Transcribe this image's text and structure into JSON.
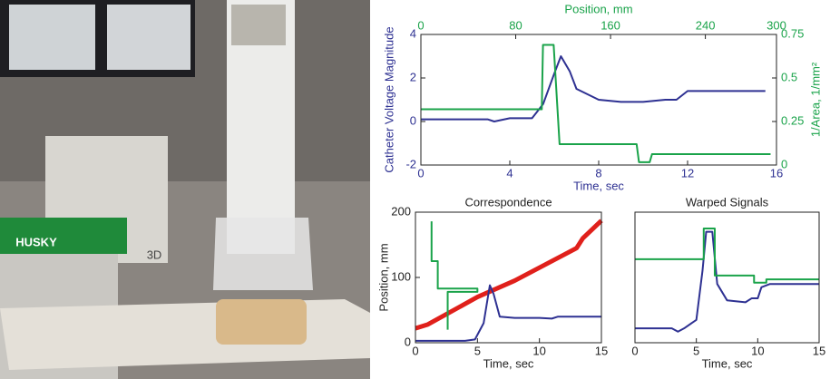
{
  "photo": {
    "texts": [
      "HUSKY",
      "3D"
    ]
  },
  "chart_data": [
    {
      "type": "line",
      "xlabel": "Time, sec",
      "ylabel": "Catheter Voltage Magnitude",
      "x2label": "Position, mm",
      "y2label": "1/Area, 1/mm²",
      "xlim": [
        0,
        16
      ],
      "xticks": [
        0,
        4,
        8,
        12,
        16
      ],
      "ylim": [
        -2,
        4
      ],
      "yticks": [
        -2,
        0,
        2,
        4
      ],
      "x2lim": [
        0,
        300
      ],
      "x2ticks": [
        0,
        80,
        160,
        240,
        300
      ],
      "y2lim": [
        0,
        0.75
      ],
      "y2ticks": [
        0,
        0.25,
        0.5,
        0.75
      ],
      "label_colors": {
        "x": "#2e3192",
        "y": "#2e3192",
        "x2": "#1aa34a",
        "y2": "#1aa34a"
      },
      "series": [
        {
          "color": "#2e3192",
          "x": [
            0,
            3,
            3.3,
            4,
            5,
            5.5,
            6,
            6.3,
            6.7,
            7,
            8,
            9,
            10,
            11,
            11.5,
            12,
            15.5
          ],
          "values": [
            0.1,
            0.1,
            0.0,
            0.15,
            0.15,
            0.8,
            2.2,
            3.0,
            2.3,
            1.5,
            1.0,
            0.9,
            0.9,
            1.0,
            1.0,
            1.4,
            1.4
          ]
        },
        {
          "color": "#1aa34a",
          "axis": "y2",
          "xaxis": "x2",
          "x": [
            0,
            102,
            103,
            112,
            117,
            182,
            184,
            193,
            195,
            295
          ],
          "values": [
            0.32,
            0.32,
            0.69,
            0.69,
            0.12,
            0.12,
            0.016,
            0.016,
            0.0625,
            0.0625
          ]
        }
      ]
    },
    {
      "type": "line",
      "title": "Correspondence",
      "xlabel": "Time, sec",
      "ylabel": "Position, mm",
      "xlim": [
        0,
        15
      ],
      "xticks": [
        0,
        5,
        10,
        15
      ],
      "ylim": [
        0,
        200
      ],
      "yticks": [
        0,
        100,
        200
      ],
      "series": [
        {
          "color": "#e0201b",
          "width": 5,
          "x": [
            0,
            1,
            5,
            8,
            10,
            12,
            13,
            13.5,
            15
          ],
          "values": [
            22,
            28,
            70,
            95,
            115,
            135,
            145,
            160,
            187
          ]
        },
        {
          "color": "#2e3192",
          "x": [
            0,
            4,
            4.8,
            5.5,
            6,
            6.3,
            6.8,
            8,
            10,
            11,
            11.5,
            15
          ],
          "values": [
            3,
            3,
            5,
            30,
            88,
            75,
            40,
            38,
            38,
            37,
            40,
            40
          ]
        },
        {
          "color": "#1aa34a",
          "x": [
            1.3,
            1.3,
            1.8,
            1.8,
            5,
            5,
            2.6,
            2.6
          ],
          "values": [
            186,
            125,
            125,
            83,
            83,
            78,
            78,
            20
          ]
        }
      ]
    },
    {
      "type": "line",
      "title": "Warped Signals",
      "xlabel": "Time, sec",
      "xlim": [
        0,
        15
      ],
      "xticks": [
        0,
        5,
        10,
        15
      ],
      "ylim": [
        0,
        200
      ],
      "series": [
        {
          "color": "#2e3192",
          "x": [
            0,
            3,
            3.5,
            4,
            5,
            5.5,
            5.8,
            6.3,
            6.7,
            7.5,
            9,
            9.5,
            10,
            10.3,
            11,
            15
          ],
          "values": [
            22,
            22,
            17,
            22,
            35,
            110,
            170,
            170,
            90,
            65,
            62,
            68,
            68,
            85,
            90,
            90
          ]
        },
        {
          "color": "#1aa34a",
          "x": [
            0,
            5.6,
            5.6,
            6.5,
            6.5,
            9.7,
            9.7,
            10.7,
            10.7,
            15
          ],
          "values": [
            128,
            128,
            175,
            175,
            103,
            103,
            92,
            92,
            97,
            97
          ]
        }
      ]
    }
  ]
}
